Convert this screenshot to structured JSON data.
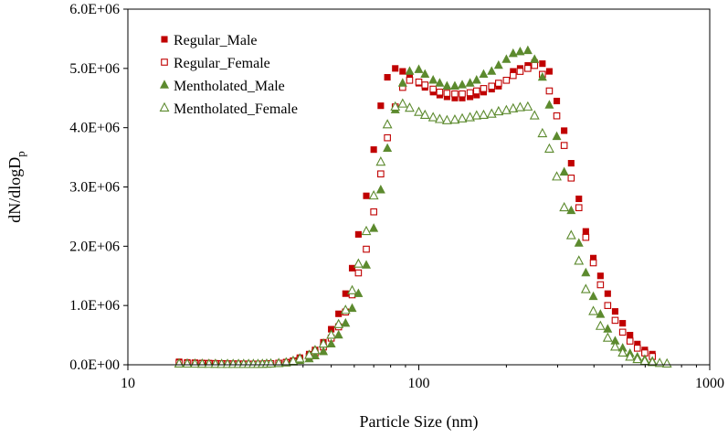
{
  "chart_data": {
    "type": "scatter",
    "title": "",
    "xlabel": "Particle Size (nm)",
    "ylabel_main": "dN/dlogD",
    "ylabel_sub": "p",
    "xscale": "log",
    "xlim": [
      10,
      1000
    ],
    "ylim": [
      0,
      6000000
    ],
    "x_tick_values": [
      10,
      100,
      1000
    ],
    "x_tick_labels": [
      "10",
      "100",
      "1000"
    ],
    "y_tick_values": [
      0,
      1000000,
      2000000,
      3000000,
      4000000,
      5000000,
      6000000
    ],
    "y_tick_labels": [
      "0.0E+00",
      "1.0E+06",
      "2.0E+06",
      "3.0E+06",
      "4.0E+06",
      "5.0E+06",
      "6.0E+06"
    ],
    "grid": false,
    "legend_position": "top-left",
    "series": [
      {
        "name": "Regular_Male",
        "marker": "square-filled",
        "color": "#c00000",
        "x": [
          15,
          16,
          17,
          18,
          19,
          20,
          21,
          22,
          23,
          24,
          25,
          26,
          27,
          28,
          29,
          30,
          31,
          33,
          35,
          37,
          39,
          42,
          44,
          47,
          50,
          53,
          56,
          59,
          62,
          66,
          70,
          74,
          78,
          83,
          88,
          93,
          100,
          105,
          112,
          118,
          125,
          133,
          141,
          150,
          158,
          167,
          178,
          188,
          200,
          211,
          223,
          237,
          250,
          266,
          281,
          298,
          316,
          334,
          355,
          375,
          398,
          421,
          446,
          473,
          502,
          532,
          564,
          598,
          635
        ],
        "y": [
          50000,
          40000,
          35000,
          30000,
          28000,
          25000,
          22000,
          20000,
          18000,
          17000,
          16000,
          15000,
          15000,
          14000,
          15000,
          18000,
          22000,
          30000,
          45000,
          70000,
          120000,
          180000,
          250000,
          380000,
          600000,
          860000,
          1200000,
          1630000,
          2200000,
          2850000,
          3630000,
          4370000,
          4850000,
          5000000,
          4950000,
          4850000,
          4750000,
          4680000,
          4600000,
          4550000,
          4520000,
          4500000,
          4500000,
          4520000,
          4550000,
          4600000,
          4650000,
          4700000,
          4800000,
          4950000,
          5000000,
          5050000,
          5100000,
          5080000,
          4950000,
          4450000,
          3950000,
          3400000,
          2800000,
          2250000,
          1800000,
          1500000,
          1200000,
          900000,
          700000,
          500000,
          350000,
          250000,
          180000
        ]
      },
      {
        "name": "Regular_Female",
        "marker": "square-open",
        "color": "#c00000",
        "x": [
          15,
          16,
          17,
          18,
          19,
          20,
          21,
          22,
          23,
          24,
          25,
          26,
          27,
          28,
          29,
          30,
          31,
          33,
          35,
          37,
          39,
          42,
          44,
          47,
          50,
          53,
          56,
          59,
          62,
          66,
          70,
          74,
          78,
          83,
          88,
          93,
          100,
          105,
          112,
          118,
          125,
          133,
          141,
          150,
          158,
          167,
          178,
          188,
          200,
          211,
          223,
          237,
          250,
          266,
          281,
          298,
          316,
          334,
          355,
          375,
          398,
          421,
          446,
          473,
          502,
          532,
          564,
          598,
          635
        ],
        "y": [
          30000,
          25000,
          22000,
          20000,
          18000,
          16000,
          15000,
          14000,
          13000,
          12000,
          12000,
          11000,
          11000,
          11000,
          12000,
          14000,
          18000,
          25000,
          35000,
          55000,
          90000,
          140000,
          200000,
          300000,
          450000,
          640000,
          890000,
          1180000,
          1550000,
          1950000,
          2580000,
          3220000,
          3830000,
          4350000,
          4680000,
          4800000,
          4770000,
          4720000,
          4650000,
          4600000,
          4580000,
          4570000,
          4570000,
          4590000,
          4620000,
          4660000,
          4700000,
          4750000,
          4800000,
          4880000,
          4950000,
          5000000,
          5050000,
          4900000,
          4620000,
          4200000,
          3700000,
          3150000,
          2650000,
          2150000,
          1720000,
          1350000,
          1000000,
          750000,
          550000,
          400000,
          280000,
          200000,
          140000
        ]
      },
      {
        "name": "Mentholated_Male",
        "marker": "triangle-filled",
        "color": "#5c8a2e",
        "x": [
          15,
          16,
          17,
          18,
          19,
          20,
          21,
          22,
          23,
          24,
          25,
          26,
          27,
          28,
          29,
          30,
          31,
          33,
          35,
          37,
          39,
          42,
          44,
          47,
          50,
          53,
          56,
          59,
          62,
          66,
          70,
          74,
          78,
          83,
          88,
          93,
          100,
          105,
          112,
          118,
          125,
          133,
          141,
          150,
          158,
          167,
          178,
          188,
          200,
          211,
          223,
          237,
          250,
          266,
          281,
          298,
          316,
          334,
          355,
          375,
          398,
          421,
          446,
          473,
          502,
          532,
          564,
          598,
          635
        ],
        "y": [
          20000,
          18000,
          16000,
          15000,
          14000,
          13000,
          12000,
          11000,
          10000,
          10000,
          10000,
          10000,
          10000,
          10000,
          11000,
          13000,
          16000,
          22000,
          30000,
          45000,
          70000,
          100000,
          150000,
          220000,
          350000,
          500000,
          700000,
          950000,
          1200000,
          1680000,
          2300000,
          2950000,
          3650000,
          4300000,
          4750000,
          4950000,
          4980000,
          4900000,
          4800000,
          4750000,
          4700000,
          4700000,
          4720000,
          4750000,
          4800000,
          4900000,
          4950000,
          5050000,
          5150000,
          5250000,
          5280000,
          5300000,
          5150000,
          4850000,
          4380000,
          3850000,
          3250000,
          2600000,
          2050000,
          1550000,
          1150000,
          850000,
          600000,
          400000,
          280000,
          190000,
          130000,
          90000,
          60000
        ]
      },
      {
        "name": "Mentholated_Female",
        "marker": "triangle-open",
        "color": "#5c8a2e",
        "x": [
          15,
          16,
          17,
          18,
          19,
          20,
          21,
          22,
          23,
          24,
          25,
          26,
          27,
          28,
          29,
          30,
          31,
          33,
          35,
          37,
          39,
          42,
          44,
          47,
          50,
          53,
          56,
          59,
          62,
          66,
          70,
          74,
          78,
          83,
          88,
          93,
          100,
          105,
          112,
          118,
          125,
          133,
          141,
          150,
          158,
          167,
          178,
          188,
          200,
          211,
          223,
          237,
          250,
          266,
          281,
          298,
          316,
          334,
          355,
          375,
          398,
          421,
          446,
          473,
          502,
          532,
          564,
          598,
          635,
          673,
          713
        ],
        "y": [
          15000,
          14000,
          12000,
          11000,
          10000,
          9000,
          8000,
          8000,
          8000,
          8000,
          8000,
          8000,
          8000,
          8000,
          9000,
          11000,
          15000,
          22000,
          35000,
          60000,
          100000,
          160000,
          240000,
          350000,
          500000,
          680000,
          920000,
          1250000,
          1700000,
          2250000,
          2850000,
          3420000,
          4050000,
          4350000,
          4400000,
          4330000,
          4260000,
          4210000,
          4170000,
          4140000,
          4120000,
          4130000,
          4150000,
          4170000,
          4200000,
          4210000,
          4230000,
          4270000,
          4290000,
          4320000,
          4340000,
          4350000,
          4200000,
          3900000,
          3640000,
          3170000,
          2650000,
          2180000,
          1750000,
          1270000,
          900000,
          650000,
          450000,
          300000,
          200000,
          130000,
          90000,
          60000,
          40000,
          25000,
          15000
        ]
      }
    ]
  }
}
